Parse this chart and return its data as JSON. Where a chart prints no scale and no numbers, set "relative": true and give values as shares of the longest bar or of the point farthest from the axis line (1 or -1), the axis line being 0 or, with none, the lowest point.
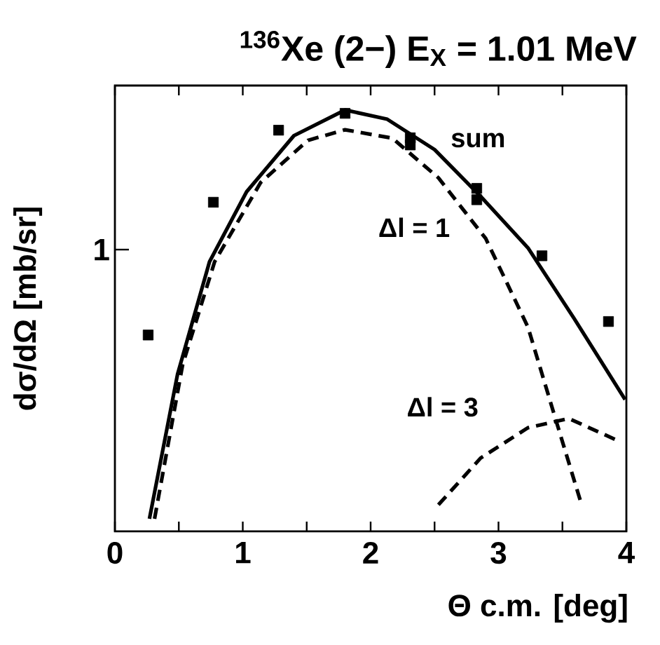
{
  "chart_data": {
    "type": "line",
    "title": "$^{136}$Xe (2−) E$_{X}$ = 1.01 MeV",
    "xlabel": "Θ c.m. [deg]",
    "ylabel": "dσ/dΩ [mb/sr]",
    "legend": false,
    "grid": false,
    "relative": true,
    "xlim": [
      0,
      4
    ],
    "xticks": [
      0,
      {
        "value": 0.5,
        "label": null
      },
      1,
      {
        "value": 1.5,
        "label": null
      },
      2,
      {
        "value": 2.5,
        "label": null
      },
      3,
      {
        "value": 3.5,
        "label": null
      },
      4
    ],
    "annotations": [
      "1"
    ],
    "series": [
      {
        "type": "scatter",
        "marker": "square",
        "color": "#000000",
        "x": [
          0.26,
          0.77,
          1.28,
          1.8,
          2.31,
          2.31,
          2.83,
          2.83,
          3.34,
          3.86
        ],
        "values": [
          0.466,
          0.781,
          0.952,
          0.992,
          0.934,
          0.917,
          0.814,
          0.787,
          0.654,
          0.498
        ]
      },
      {
        "name": "sum",
        "marker": "none",
        "line_style": "solid",
        "color": "#000000",
        "x": [
          0.27,
          0.49,
          0.74,
          1.03,
          1.4,
          1.8,
          2.13,
          2.5,
          2.86,
          3.23,
          3.59,
          3.99
        ],
        "values": [
          0.03,
          0.373,
          0.64,
          0.806,
          0.939,
          1,
          0.978,
          0.906,
          0.795,
          0.673,
          0.506,
          0.313
        ]
      },
      {
        "name": "Δl = 1",
        "marker": "none",
        "line_style": "dashed",
        "color": "#000000",
        "x": [
          0.31,
          0.53,
          0.78,
          1.14,
          1.51,
          1.8,
          2.17,
          2.53,
          2.9,
          3.23,
          3.45,
          3.65
        ],
        "values": [
          0.03,
          0.396,
          0.64,
          0.828,
          0.928,
          0.953,
          0.933,
          0.839,
          0.695,
          0.485,
          0.263,
          0.063
        ]
      },
      {
        "name": "Δl = 3",
        "marker": "none",
        "line_style": "dashed",
        "color": "#000000",
        "x": [
          2.53,
          2.86,
          3.23,
          3.55,
          3.95
        ],
        "values": [
          0.063,
          0.174,
          0.246,
          0.268,
          0.213
        ]
      }
    ]
  }
}
